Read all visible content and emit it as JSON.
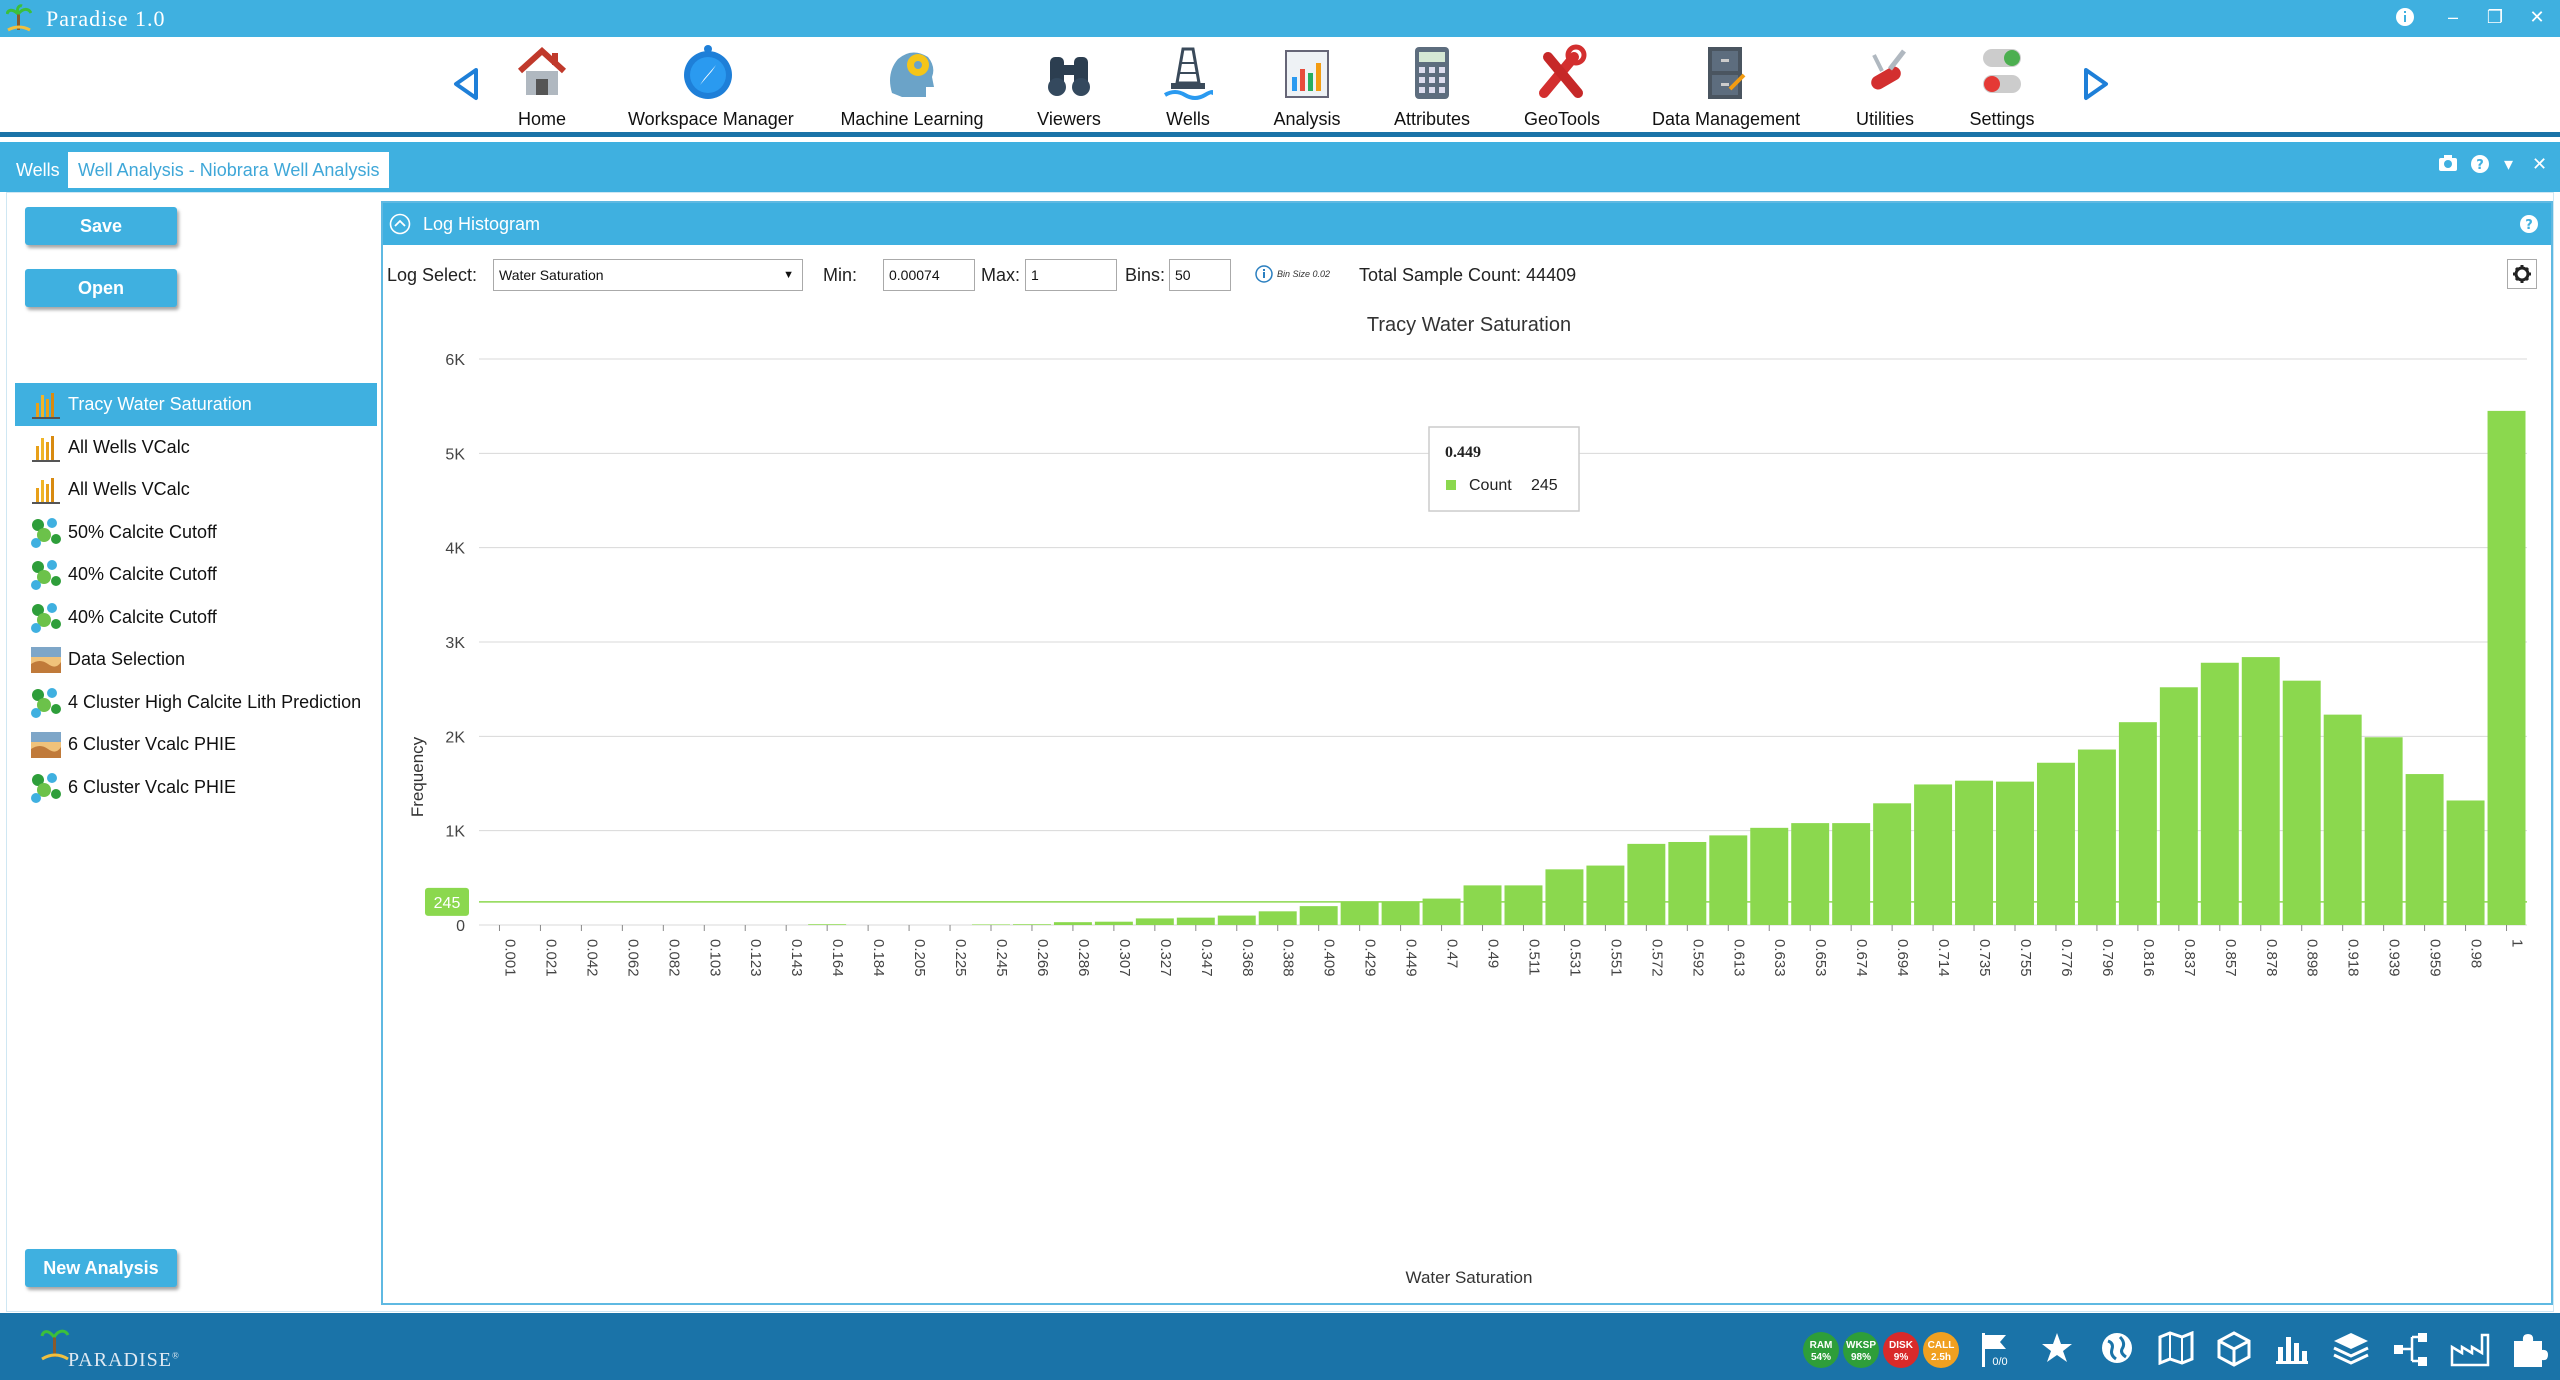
{
  "app": {
    "title": "Paradise 1.0",
    "footer_brand": "PARADISE",
    "footer_tm": "®"
  },
  "ribbon": [
    {
      "label": "Home",
      "icon": "home-icon"
    },
    {
      "label": "Workspace Manager",
      "icon": "compass-icon"
    },
    {
      "label": "Machine Learning",
      "icon": "brain-gear-icon"
    },
    {
      "label": "Viewers",
      "icon": "binoculars-icon"
    },
    {
      "label": "Wells",
      "icon": "oil-rig-icon"
    },
    {
      "label": "Analysis",
      "icon": "analysis-chart-icon"
    },
    {
      "label": "Attributes",
      "icon": "calculator-icon"
    },
    {
      "label": "GeoTools",
      "icon": "tools-icon"
    },
    {
      "label": "Data Management",
      "icon": "file-cabinet-icon"
    },
    {
      "label": "Utilities",
      "icon": "swiss-knife-icon"
    },
    {
      "label": "Settings",
      "icon": "toggle-switch-icon"
    }
  ],
  "tabs": {
    "wells": "Wells",
    "analysis": "Well Analysis - Niobrara Well Analysis"
  },
  "left": {
    "save_label": "Save",
    "open_label": "Open",
    "new_analysis_label": "New Analysis",
    "items": [
      {
        "label": "Tracy Water Saturation",
        "icon": "histogram-icon"
      },
      {
        "label": "All Wells VCalc",
        "icon": "histogram-icon"
      },
      {
        "label": "All Wells VCalc",
        "icon": "histogram-icon"
      },
      {
        "label": "50% Calcite Cutoff",
        "icon": "cluster-icon"
      },
      {
        "label": "40% Calcite Cutoff",
        "icon": "cluster-icon"
      },
      {
        "label": "40% Calcite Cutoff",
        "icon": "cluster-icon"
      },
      {
        "label": "Data Selection",
        "icon": "landscape-icon"
      },
      {
        "label": "4 Cluster High Calcite Lith Prediction",
        "icon": "cluster-icon"
      },
      {
        "label": "6 Cluster Vcalc PHIE",
        "icon": "landscape-icon"
      },
      {
        "label": "6 Cluster Vcalc PHIE",
        "icon": "cluster-icon"
      }
    ]
  },
  "panel": {
    "title": "Log Histogram",
    "log_select_label": "Log Select:",
    "log_select_value": "Water Saturation",
    "min_label": "Min:",
    "min_value": "0.00074",
    "max_label": "Max:",
    "max_value": "1",
    "bins_label": "Bins:",
    "bins_value": "50",
    "bin_size": "Bin Size 0.02",
    "total_label": "Total Sample Count: 44409"
  },
  "tooltip": {
    "title": "0.449",
    "series": "Count",
    "value": "245"
  },
  "status": [
    {
      "name": "RAM",
      "value": "54%",
      "color": "#2e9e3a"
    },
    {
      "name": "WKSP",
      "value": "98%",
      "color": "#2e9e3a"
    },
    {
      "name": "DISK",
      "value": "9%",
      "color": "#d92a2a"
    },
    {
      "name": "CALL",
      "value": "2.5h",
      "color": "#f0a020"
    }
  ],
  "footer_flag_count": "0/0",
  "chart_data": {
    "type": "bar",
    "title": "Tracy Water Saturation",
    "xlabel": "Water Saturation",
    "ylabel": "Frequency",
    "ylim": [
      0,
      6000
    ],
    "yticks": [
      0,
      1000,
      2000,
      3000,
      4000,
      5000,
      6000
    ],
    "ytick_labels": [
      "0",
      "1K",
      "2K",
      "3K",
      "4K",
      "5K",
      "6K"
    ],
    "highlight_label": "245",
    "color": "#8bd84e",
    "categories": [
      "0.001",
      "0.021",
      "0.042",
      "0.062",
      "0.082",
      "0.103",
      "0.123",
      "0.143",
      "0.164",
      "0.184",
      "0.205",
      "0.225",
      "0.245",
      "0.266",
      "0.286",
      "0.307",
      "0.327",
      "0.347",
      "0.368",
      "0.388",
      "0.409",
      "0.429",
      "0.449",
      "0.47",
      "0.49",
      "0.511",
      "0.531",
      "0.551",
      "0.572",
      "0.592",
      "0.613",
      "0.633",
      "0.653",
      "0.674",
      "0.694",
      "0.714",
      "0.735",
      "0.755",
      "0.776",
      "0.796",
      "0.816",
      "0.837",
      "0.857",
      "0.878",
      "0.898",
      "0.918",
      "0.939",
      "0.959",
      "0.98",
      "1"
    ],
    "values": [
      0,
      0,
      0,
      0,
      0,
      0,
      0,
      0,
      8,
      0,
      0,
      0,
      6,
      8,
      30,
      35,
      70,
      78,
      100,
      145,
      200,
      245,
      245,
      280,
      420,
      420,
      590,
      630,
      860,
      880,
      950,
      1030,
      1080,
      1080,
      1290,
      1490,
      1530,
      1520,
      1720,
      1860,
      2150,
      2520,
      2780,
      2840,
      2590,
      2230,
      1990,
      1600,
      1320,
      5450
    ]
  }
}
